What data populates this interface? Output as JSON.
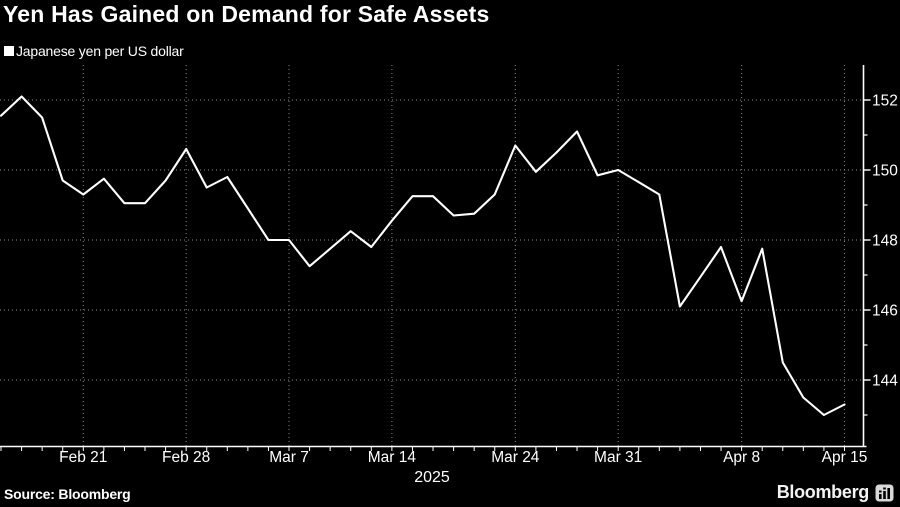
{
  "title": "Yen Has Gained on Demand for Safe Assets",
  "legend": {
    "label": "Japanese yen per US dollar",
    "marker": "filled-square",
    "marker_color": "#ffffff"
  },
  "source": "Source: Bloomberg",
  "brand": {
    "name": "Bloomberg",
    "icon": "bar-chart-logo-icon"
  },
  "colors": {
    "background": "#000000",
    "line": "#ffffff",
    "grid": "#8a8a8a",
    "axis": "#ffffff",
    "text": "#ffffff"
  },
  "chart_data": {
    "type": "line",
    "title": "Yen Has Gained on Demand for Safe Assets",
    "series_name": "Japanese yen per US dollar",
    "legend_position": "top-left",
    "y_axis_side": "right",
    "grid": "dotted horizontal and vertical",
    "x": [
      "Feb 17",
      "Feb 18",
      "Feb 19",
      "Feb 20",
      "Feb 21",
      "Feb 24",
      "Feb 25",
      "Feb 26",
      "Feb 27",
      "Feb 28",
      "Mar 3",
      "Mar 4",
      "Mar 5",
      "Mar 6",
      "Mar 7",
      "Mar 10",
      "Mar 11",
      "Mar 12",
      "Mar 13",
      "Mar 14",
      "Mar 17",
      "Mar 18",
      "Mar 19",
      "Mar 20",
      "Mar 21",
      "Mar 24",
      "Mar 25",
      "Mar 26",
      "Mar 27",
      "Mar 28",
      "Mar 31",
      "Apr 1",
      "Apr 2",
      "Apr 3",
      "Apr 4",
      "Apr 7",
      "Apr 8",
      "Apr 9",
      "Apr 10",
      "Apr 11",
      "Apr 14",
      "Apr 15"
    ],
    "values": [
      151.55,
      152.1,
      151.5,
      149.7,
      149.3,
      149.75,
      149.05,
      149.05,
      149.7,
      150.6,
      149.5,
      149.8,
      148.9,
      148.0,
      148.0,
      147.25,
      147.75,
      148.25,
      147.8,
      148.55,
      149.25,
      149.25,
      148.7,
      148.75,
      149.3,
      150.7,
      149.95,
      150.5,
      151.1,
      149.85,
      150.0,
      149.65,
      149.3,
      146.1,
      146.95,
      147.8,
      146.25,
      147.75,
      144.5,
      143.5,
      143.0,
      143.3
    ],
    "x_tick_labels": [
      "Feb 21",
      "Feb 28",
      "Mar 7",
      "Mar 14",
      "Mar 24",
      "Mar 31",
      "Apr 8",
      "Apr 15"
    ],
    "x_tick_day_index": [
      4,
      9,
      14,
      19,
      25,
      30,
      36,
      41
    ],
    "x_axis_secondary_label": "2025",
    "y_ticks_major": [
      152,
      150,
      148,
      146,
      144
    ],
    "y_ticks_minor": [
      151,
      149,
      147,
      145,
      143
    ],
    "ylim": [
      142.1,
      153.0
    ],
    "xlim_days": [
      0,
      41.9
    ]
  }
}
